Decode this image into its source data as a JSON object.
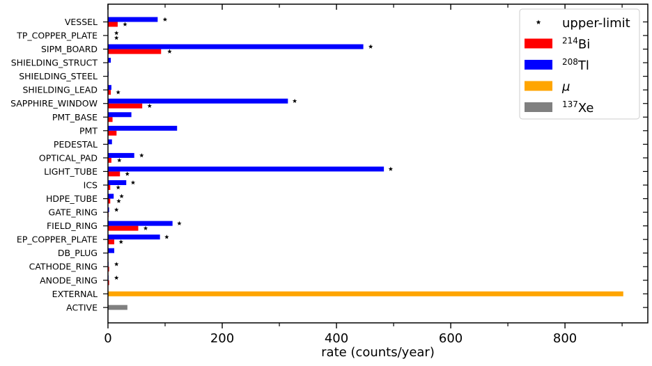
{
  "chart_data": {
    "type": "bar",
    "orientation": "horizontal",
    "xlabel": "rate (counts/year)",
    "ylabel": "",
    "xlim": [
      0,
      945
    ],
    "xticks": [
      "0",
      "200",
      "400",
      "600",
      "800"
    ],
    "categories": [
      "VESSEL",
      "TP_COPPER_PLATE",
      "SIPM_BOARD",
      "SHIELDING_STRUCT",
      "SHIELDING_STEEL",
      "SHIELDING_LEAD",
      "SAPPHIRE_WINDOW",
      "PMT_BASE",
      "PMT",
      "PEDESTAL",
      "OPTICAL_PAD",
      "LIGHT_TUBE",
      "ICS",
      "HDPE_TUBE",
      "GATE_RING",
      "FIELD_RING",
      "EP_COPPER_PLATE",
      "DB_PLUG",
      "CATHODE_RING",
      "ANODE_RING",
      "EXTERNAL",
      "ACTIVE"
    ],
    "series": [
      {
        "name": "214Bi",
        "color": "#ff0000",
        "values": [
          17,
          0,
          93,
          0,
          0,
          5,
          60,
          8,
          15,
          0,
          6,
          21,
          4,
          4,
          1,
          53,
          11,
          0,
          2,
          2,
          0,
          0
        ]
      },
      {
        "name": "208Tl",
        "color": "#0000ff",
        "values": [
          87,
          0,
          447,
          5,
          1,
          6,
          315,
          41,
          121,
          7,
          46,
          483,
          32,
          10,
          2,
          113,
          91,
          11,
          1,
          1,
          0,
          0
        ]
      },
      {
        "name": "mu",
        "color": "#ffa500",
        "values": [
          0,
          0,
          0,
          0,
          0,
          0,
          0,
          0,
          0,
          0,
          0,
          0,
          0,
          0,
          0,
          0,
          0,
          0,
          0,
          0,
          902,
          0
        ]
      },
      {
        "name": "137Xe",
        "color": "#808080",
        "values": [
          0,
          0,
          0,
          0,
          0,
          0,
          0,
          0,
          0,
          0,
          0,
          0,
          0,
          0,
          0,
          0,
          0,
          0,
          0,
          0,
          0,
          34
        ]
      }
    ],
    "upper_limits": {
      "name": "upper-limit",
      "points": [
        {
          "category": "VESSEL",
          "slot": "upper",
          "x": 95
        },
        {
          "category": "VESSEL",
          "slot": "lower",
          "x": 25
        },
        {
          "category": "TP_COPPER_PLATE",
          "slot": "upper",
          "x": 10
        },
        {
          "category": "TP_COPPER_PLATE",
          "slot": "lower",
          "x": 10
        },
        {
          "category": "SIPM_BOARD",
          "slot": "upper",
          "x": 455
        },
        {
          "category": "SIPM_BOARD",
          "slot": "lower",
          "x": 103
        },
        {
          "category": "SHIELDING_LEAD",
          "slot": "lower",
          "x": 13
        },
        {
          "category": "SAPPHIRE_WINDOW",
          "slot": "upper",
          "x": 322
        },
        {
          "category": "SAPPHIRE_WINDOW",
          "slot": "lower",
          "x": 68
        },
        {
          "category": "OPTICAL_PAD",
          "slot": "upper",
          "x": 54
        },
        {
          "category": "OPTICAL_PAD",
          "slot": "lower",
          "x": 15
        },
        {
          "category": "LIGHT_TUBE",
          "slot": "upper",
          "x": 490
        },
        {
          "category": "LIGHT_TUBE",
          "slot": "lower",
          "x": 29
        },
        {
          "category": "ICS",
          "slot": "upper",
          "x": 39
        },
        {
          "category": "ICS",
          "slot": "lower",
          "x": 13
        },
        {
          "category": "HDPE_TUBE",
          "slot": "upper",
          "x": 19
        },
        {
          "category": "HDPE_TUBE",
          "slot": "lower",
          "x": 14
        },
        {
          "category": "GATE_RING",
          "slot": "upper",
          "x": 10
        },
        {
          "category": "FIELD_RING",
          "slot": "upper",
          "x": 120
        },
        {
          "category": "FIELD_RING",
          "slot": "lower",
          "x": 61
        },
        {
          "category": "EP_COPPER_PLATE",
          "slot": "upper",
          "x": 98
        },
        {
          "category": "EP_COPPER_PLATE",
          "slot": "lower",
          "x": 18
        },
        {
          "category": "CATHODE_RING",
          "slot": "upper",
          "x": 10
        },
        {
          "category": "ANODE_RING",
          "slot": "upper",
          "x": 10
        }
      ]
    },
    "legend": {
      "placement": "top-right",
      "entries": [
        {
          "label": "upper-limit",
          "sup": "",
          "marker": "star",
          "color": "#000000"
        },
        {
          "label": "Bi",
          "sup": "214",
          "marker": "patch",
          "color": "#ff0000"
        },
        {
          "label": "Tl",
          "sup": "208",
          "marker": "patch",
          "color": "#0000ff"
        },
        {
          "label": "μ",
          "sup": "",
          "marker": "patch",
          "color": "#ffa500"
        },
        {
          "label": "Xe",
          "sup": "137",
          "marker": "patch",
          "color": "#808080"
        }
      ]
    },
    "grid": false
  }
}
